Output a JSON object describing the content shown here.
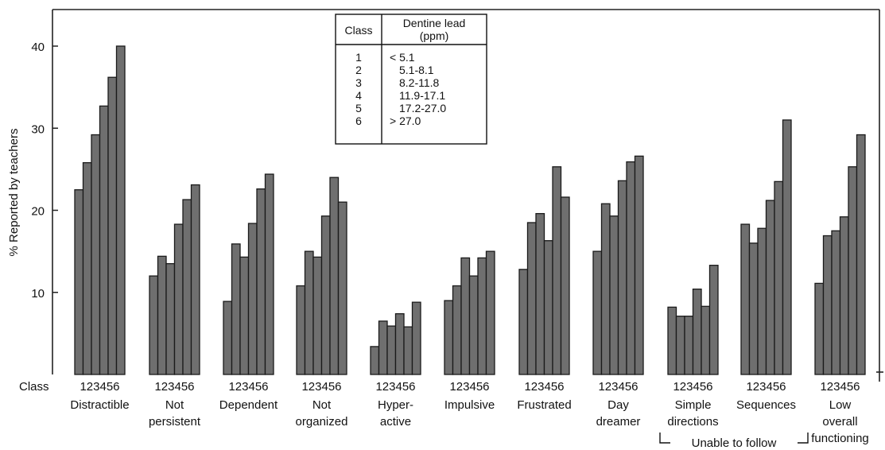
{
  "chart_data": {
    "type": "bar",
    "ylabel": "% Reported by teachers",
    "ylim": [
      0,
      40
    ],
    "yticks": [
      10,
      20,
      30,
      40
    ],
    "class_axis_label": "Class",
    "class_digits": [
      "1",
      "2",
      "3",
      "4",
      "5",
      "6"
    ],
    "series_names": [
      "1",
      "2",
      "3",
      "4",
      "5",
      "6"
    ],
    "bar_color": "#6f6f6f",
    "categories": [
      {
        "label": [
          "Distractible"
        ],
        "values": [
          22.5,
          25.8,
          29.2,
          32.7,
          36.2,
          40.0
        ]
      },
      {
        "label": [
          "Not",
          "persistent"
        ],
        "values": [
          12.0,
          14.4,
          13.5,
          18.3,
          21.3,
          23.1
        ]
      },
      {
        "label": [
          "Dependent"
        ],
        "values": [
          8.9,
          15.9,
          14.3,
          18.4,
          22.6,
          24.4
        ]
      },
      {
        "label": [
          "Not",
          "organized"
        ],
        "values": [
          10.8,
          15.0,
          14.3,
          19.3,
          24.0,
          21.0
        ]
      },
      {
        "label": [
          "Hyper-",
          "active"
        ],
        "values": [
          3.4,
          6.5,
          5.9,
          7.4,
          5.8,
          8.8
        ]
      },
      {
        "label": [
          "Impulsive"
        ],
        "values": [
          9.0,
          10.8,
          14.2,
          12.0,
          14.2,
          15.0
        ]
      },
      {
        "label": [
          "Frustrated"
        ],
        "values": [
          12.8,
          18.5,
          19.6,
          16.3,
          25.3,
          21.6
        ]
      },
      {
        "label": [
          "Day",
          "dreamer"
        ],
        "values": [
          15.0,
          20.8,
          19.3,
          23.6,
          25.9,
          26.6
        ]
      },
      {
        "label": [
          "Simple",
          "directions"
        ],
        "values": [
          8.2,
          7.1,
          7.1,
          10.4,
          8.3,
          13.3
        ]
      },
      {
        "label": [
          "Sequences"
        ],
        "values": [
          18.3,
          16.0,
          17.8,
          21.2,
          23.5,
          31.0
        ]
      },
      {
        "label": [
          "Low",
          "overall",
          "functioning"
        ],
        "values": [
          11.1,
          16.9,
          17.5,
          19.2,
          25.3,
          29.2
        ]
      }
    ],
    "group_annotation": "Unable to follow",
    "legend": {
      "placement": "top-center",
      "header_class": "Class",
      "header_range": [
        "Dentine lead",
        "(ppm)"
      ],
      "rows": [
        {
          "cls": "1",
          "range": "< 5.1"
        },
        {
          "cls": "2",
          "range": "5.1-8.1"
        },
        {
          "cls": "3",
          "range": "8.2-11.8"
        },
        {
          "cls": "4",
          "range": "11.9-17.1"
        },
        {
          "cls": "5",
          "range": "17.2-27.0"
        },
        {
          "cls": "6",
          "range": "> 27.0"
        }
      ]
    }
  }
}
